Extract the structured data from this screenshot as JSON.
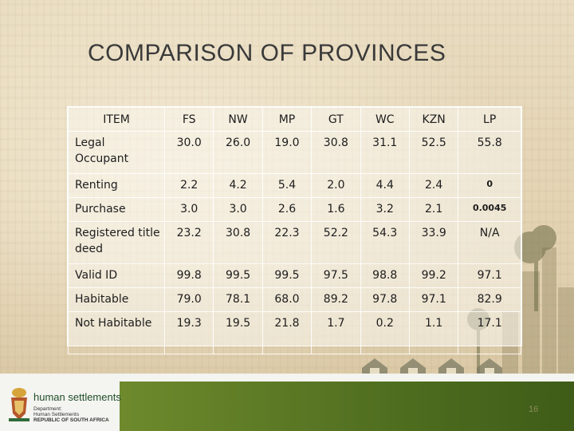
{
  "slide": {
    "title": "COMPARISON OF PROVINCES",
    "page_number": "16"
  },
  "table": {
    "headers": [
      "ITEM",
      "FS",
      "NW",
      "MP",
      "GT",
      "WC",
      "KZN",
      "LP"
    ],
    "rows": [
      {
        "item": "Legal Occupant",
        "values": [
          "30.0",
          "26.0",
          "19.0",
          "30.8",
          "31.1",
          "52.5",
          "55.8"
        ]
      },
      {
        "item": "Renting",
        "values": [
          "2.2",
          "4.2",
          "5.4",
          "2.0",
          "4.4",
          "2.4",
          "0"
        ]
      },
      {
        "item": "Purchase",
        "values": [
          "3.0",
          "3.0",
          "2.6",
          "1.6",
          "3.2",
          "2.1",
          "0.0045"
        ]
      },
      {
        "item": "Registered title deed",
        "values": [
          "23.2",
          "30.8",
          "22.3",
          "52.2",
          "54.3",
          "33.9",
          "N/A"
        ]
      },
      {
        "item": "Valid ID",
        "values": [
          "99.8",
          "99.5",
          "99.5",
          "97.5",
          "98.8",
          "99.2",
          "97.1"
        ]
      },
      {
        "item": "Habitable",
        "values": [
          "79.0",
          "78.1",
          "68.0",
          "89.2",
          "97.8",
          "97.1",
          "82.9"
        ]
      },
      {
        "item": "Not Habitable",
        "values": [
          "19.3",
          "19.5",
          "21.8",
          "1.7",
          "0.2",
          "1.1",
          "17.1"
        ]
      }
    ]
  },
  "logo": {
    "name": "human settlements",
    "line1": "Department:",
    "line2": "Human Settlements",
    "line3": "REPUBLIC OF SOUTH AFRICA",
    "emblem_icon": "coat-of-arms-icon"
  },
  "decor": {
    "house_icon": "house-icon",
    "accent_color": "#5a7a25"
  }
}
